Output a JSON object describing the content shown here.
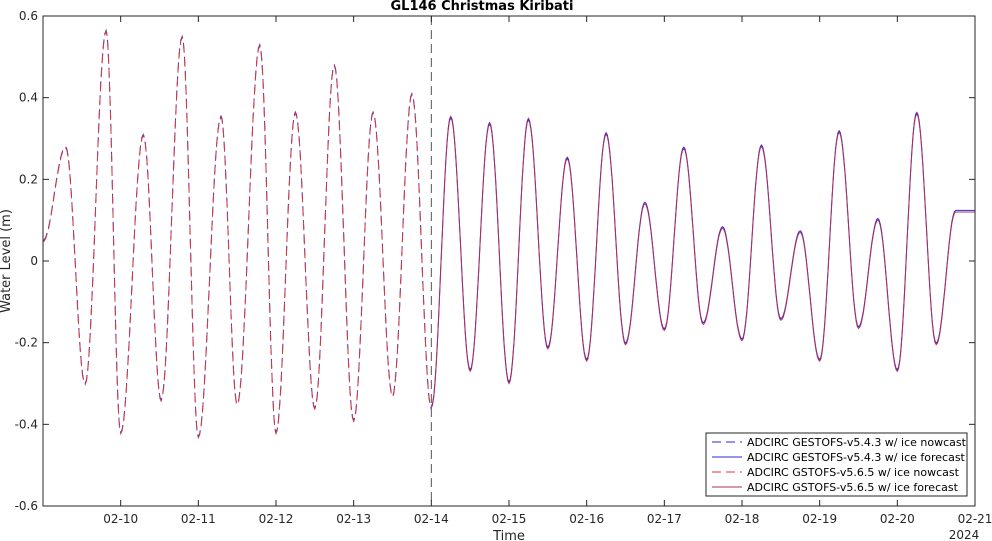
{
  "chart_data": {
    "type": "line",
    "title": "GL146 Christmas Kiribati",
    "xlabel": "Time",
    "ylabel": "Water Level (m)",
    "year_label": "2024",
    "x_start": "02-09",
    "x_end": "02-21",
    "x_ticks": [
      "02-10",
      "02-11",
      "02-12",
      "02-13",
      "02-14",
      "02-15",
      "02-16",
      "02-17",
      "02-18",
      "02-19",
      "02-20",
      "02-21"
    ],
    "y_ticks": [
      "-0.6",
      "-0.4",
      "-0.2",
      "0",
      "0.2",
      "0.4",
      "0.6"
    ],
    "ylim": [
      -0.6,
      0.6
    ],
    "grid": false,
    "legend_position": "bottom-right",
    "forecast_start": "02-14",
    "extrema": {
      "time": [
        "02-09 00:00",
        "02-09 07:00",
        "02-09 13:00",
        "02-09 19:30",
        "02-10 00:00",
        "02-10 07:00",
        "02-10 12:30",
        "02-10 19:00",
        "02-11 00:00",
        "02-11 07:00",
        "02-11 12:00",
        "02-11 19:00",
        "02-12 00:00",
        "02-12 06:00",
        "02-12 12:00",
        "02-12 18:00",
        "02-13 00:00",
        "02-13 06:00",
        "02-13 12:00",
        "02-13 18:00",
        "02-14 00:00",
        "02-14 06:00",
        "02-14 12:00",
        "02-14 18:00",
        "02-15 00:00",
        "02-15 06:00",
        "02-15 12:00",
        "02-15 18:00",
        "02-16 00:00",
        "02-16 06:00",
        "02-16 12:00",
        "02-16 18:00",
        "02-17 00:00",
        "02-17 06:00",
        "02-17 12:00",
        "02-17 18:00",
        "02-18 00:00",
        "02-18 06:00",
        "02-18 12:00",
        "02-18 18:00",
        "02-19 00:00",
        "02-19 06:00",
        "02-19 12:00",
        "02-19 18:00",
        "02-20 00:00",
        "02-20 06:00",
        "02-20 12:00",
        "02-20 18:00",
        "02-21 00:00"
      ],
      "value": [
        0.05,
        0.28,
        -0.3,
        0.565,
        -0.42,
        0.31,
        -0.34,
        0.55,
        -0.43,
        0.355,
        -0.35,
        0.53,
        -0.42,
        0.365,
        -0.36,
        0.48,
        -0.39,
        0.365,
        -0.33,
        0.41,
        -0.36,
        0.35,
        -0.27,
        0.335,
        -0.3,
        0.345,
        -0.215,
        0.25,
        -0.245,
        0.31,
        -0.205,
        0.14,
        -0.17,
        0.275,
        -0.155,
        0.08,
        -0.195,
        0.28,
        -0.145,
        0.07,
        -0.245,
        0.315,
        -0.165,
        0.1,
        -0.27,
        0.36,
        -0.205,
        0.12,
        0.12
      ]
    },
    "series": [
      {
        "name": "ADCIRC GESTOFS-v5.4.3 w/ ice nowcast",
        "color": "#2b2bd8",
        "style": "dashed",
        "segment": "nowcast",
        "offset": 0.0
      },
      {
        "name": "ADCIRC GESTOFS-v5.4.3 w/ ice forecast",
        "color": "#2b2bd8",
        "style": "solid",
        "segment": "forecast",
        "offset": 0.004
      },
      {
        "name": "ADCIRC GSTOFS-v5.6.5 w/ ice nowcast",
        "color": "#d83a3a",
        "style": "dashed",
        "segment": "nowcast",
        "offset": -0.003
      },
      {
        "name": "ADCIRC GSTOFS-v5.6.5 w/ ice forecast",
        "color": "#b02f5a",
        "style": "solid",
        "segment": "forecast",
        "offset": 0.0
      }
    ]
  }
}
